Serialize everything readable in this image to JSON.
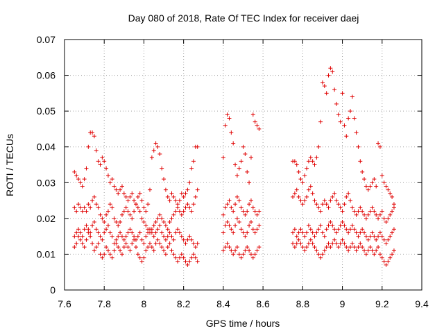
{
  "chart_data": {
    "type": "scatter",
    "title": "Day 080 of 2018, Rate Of TEC Index for receiver daej",
    "xlabel": "GPS time / hours",
    "ylabel": "ROTI / TECUs",
    "xlim": [
      7.6,
      9.4
    ],
    "ylim": [
      0,
      0.07
    ],
    "xticks": [
      7.6,
      7.8,
      8.0,
      8.2,
      8.4,
      8.6,
      8.8,
      9.0,
      9.2,
      9.4
    ],
    "xtick_labels": [
      "7.6",
      "7.8",
      "8",
      "8.2",
      "8.4",
      "8.6",
      "8.8",
      "9",
      "9.2",
      "9.4"
    ],
    "yticks": [
      0,
      0.01,
      0.02,
      0.03,
      0.04,
      0.05,
      0.06,
      0.07
    ],
    "ytick_labels": [
      "0",
      "0.01",
      "0.02",
      "0.03",
      "0.04",
      "0.05",
      "0.06",
      "0.07"
    ],
    "grid": true,
    "marker": "+",
    "color": "#e00000",
    "series": [
      {
        "name": "ROTI",
        "segments": [
          {
            "x_start": 7.65,
            "x_end": 8.27,
            "step": 0.01,
            "bands": [
              [
                0.012,
                0.013,
                0.015,
                0.014,
                0.013,
                0.012,
                0.014,
                0.016,
                0.015,
                0.013,
                0.011,
                0.012,
                0.013,
                0.01,
                0.009,
                0.01,
                0.012,
                0.011,
                0.01,
                0.009,
                0.011,
                0.013,
                0.012,
                0.011,
                0.01,
                0.012,
                0.013,
                0.012,
                0.011,
                0.013,
                0.014,
                0.012,
                0.01,
                0.009,
                0.008,
                0.009,
                0.011,
                0.012,
                0.013,
                0.012,
                0.011,
                0.013,
                0.014,
                0.013,
                0.012,
                0.011,
                0.01,
                0.012,
                0.013,
                0.011,
                0.01,
                0.009,
                0.008,
                0.009,
                0.01,
                0.009,
                0.008,
                0.007,
                0.008,
                0.009,
                0.01,
                0.009,
                0.008
              ],
              [
                0.015,
                0.016,
                0.017,
                0.016,
                0.015,
                0.017,
                0.018,
                0.017,
                0.016,
                0.018,
                0.019,
                0.017,
                0.016,
                0.015,
                0.014,
                0.016,
                0.017,
                0.018,
                0.016,
                0.015,
                0.013,
                0.014,
                0.015,
                0.016,
                0.015,
                0.014,
                0.015,
                0.016,
                0.017,
                0.016,
                0.015,
                0.014,
                0.015,
                0.016,
                0.014,
                0.013,
                0.015,
                0.016,
                0.017,
                0.016,
                0.015,
                0.016,
                0.017,
                0.018,
                0.016,
                0.015,
                0.014,
                0.015,
                0.016,
                0.015,
                0.014,
                0.016,
                0.017,
                0.016,
                0.015,
                0.014,
                0.013,
                0.014,
                0.015,
                0.014,
                0.013,
                0.012,
                0.013
              ],
              [
                0.023,
                0.022,
                0.024,
                0.023,
                0.022,
                0.023,
                0.022,
                0.024,
                0.023,
                0.025,
                0.026,
                0.024,
                0.023,
                0.021,
                0.02,
                0.019,
                0.021,
                0.022,
                0.024,
                0.023,
                0.02,
                0.019,
                0.018,
                0.019,
                0.021,
                0.022,
                0.023,
                0.022,
                0.021,
                0.02,
                0.022,
                0.024,
                0.023,
                0.022,
                0.02,
                0.019,
                0.018,
                0.017,
                0.016,
                0.017,
                0.018,
                0.019,
                0.02,
                0.021,
                0.02,
                0.019,
                0.018,
                0.017,
                0.019,
                0.02,
                0.021,
                0.022,
                0.023,
                0.022,
                0.021,
                0.022,
                0.023,
                0.024,
                0.023,
                0.022,
                0.024,
                0.026,
                0.028
              ],
              [
                0.033,
                0.032,
                0.031,
                0.03,
                0.029,
                0.031,
                0.034,
                0.04,
                0.044,
                0.044,
                0.043,
                0.039,
                0.036,
                0.035,
                0.037,
                0.036,
                0.034,
                0.032,
                0.03,
                0.031,
                0.029,
                0.028,
                0.027,
                0.028,
                0.029,
                0.027,
                0.026,
                0.025,
                0.026,
                0.027,
                0.025,
                0.024,
                0.026,
                0.027,
                0.025,
                0.023,
                0.022,
                0.024,
                0.028,
                0.037,
                0.039,
                0.041,
                0.04,
                0.038,
                0.034,
                0.031,
                0.028,
                0.026,
                0.025,
                0.027,
                0.026,
                0.025,
                0.024,
                0.025,
                0.027,
                0.026,
                0.027,
                0.028,
                0.03,
                0.034,
                0.036,
                0.04,
                0.04
              ]
            ]
          },
          {
            "x_start": 8.4,
            "x_end": 8.58,
            "step": 0.01,
            "bands": [
              [
                0.011,
                0.012,
                0.013,
                0.012,
                0.011,
                0.01,
                0.011,
                0.012,
                0.01,
                0.009,
                0.01,
                0.011,
                0.012,
                0.011,
                0.01,
                0.009,
                0.01,
                0.011,
                0.012
              ],
              [
                0.016,
                0.018,
                0.019,
                0.018,
                0.017,
                0.016,
                0.018,
                0.02,
                0.019,
                0.017,
                0.016,
                0.015,
                0.016,
                0.018,
                0.019,
                0.017,
                0.016,
                0.017,
                0.018
              ],
              [
                0.021,
                0.023,
                0.024,
                0.025,
                0.023,
                0.022,
                0.024,
                0.026,
                0.025,
                0.023,
                0.022,
                0.021,
                0.022,
                0.024,
                0.025,
                0.023,
                0.022,
                0.021,
                0.022
              ],
              [
                0.037,
                0.046,
                0.049,
                0.048,
                0.044,
                0.041,
                0.035,
                0.032,
                0.034,
                0.036,
                0.04,
                0.038,
                0.033,
                0.03,
                0.037,
                0.049,
                0.047,
                0.046,
                0.045
              ]
            ]
          },
          {
            "x_start": 8.75,
            "x_end": 9.26,
            "step": 0.01,
            "bands": [
              [
                0.013,
                0.012,
                0.013,
                0.014,
                0.013,
                0.012,
                0.011,
                0.012,
                0.013,
                0.014,
                0.013,
                0.012,
                0.011,
                0.01,
                0.009,
                0.01,
                0.011,
                0.012,
                0.013,
                0.012,
                0.013,
                0.014,
                0.013,
                0.012,
                0.013,
                0.014,
                0.013,
                0.012,
                0.011,
                0.012,
                0.013,
                0.012,
                0.011,
                0.012,
                0.013,
                0.012,
                0.011,
                0.01,
                0.011,
                0.012,
                0.011,
                0.01,
                0.011,
                0.012,
                0.01,
                0.009,
                0.008,
                0.007,
                0.008,
                0.009,
                0.01,
                0.011
              ],
              [
                0.016,
                0.017,
                0.015,
                0.016,
                0.017,
                0.016,
                0.015,
                0.016,
                0.018,
                0.017,
                0.016,
                0.015,
                0.016,
                0.017,
                0.018,
                0.016,
                0.015,
                0.017,
                0.018,
                0.019,
                0.018,
                0.017,
                0.016,
                0.017,
                0.018,
                0.019,
                0.018,
                0.017,
                0.016,
                0.017,
                0.018,
                0.017,
                0.016,
                0.015,
                0.016,
                0.017,
                0.016,
                0.015,
                0.014,
                0.015,
                0.016,
                0.015,
                0.014,
                0.015,
                0.016,
                0.015,
                0.014,
                0.013,
                0.014,
                0.015,
                0.016,
                0.017
              ],
              [
                0.026,
                0.027,
                0.028,
                0.026,
                0.025,
                0.024,
                0.025,
                0.026,
                0.028,
                0.029,
                0.027,
                0.025,
                0.024,
                0.023,
                0.022,
                0.024,
                0.025,
                0.024,
                0.023,
                0.025,
                0.026,
                0.027,
                0.025,
                0.024,
                0.023,
                0.022,
                0.024,
                0.026,
                0.027,
                0.025,
                0.023,
                0.022,
                0.021,
                0.022,
                0.023,
                0.022,
                0.021,
                0.02,
                0.021,
                0.022,
                0.023,
                0.022,
                0.021,
                0.02,
                0.021,
                0.022,
                0.02,
                0.019,
                0.02,
                0.021,
                0.022,
                0.023
              ],
              [
                0.036,
                0.036,
                0.035,
                0.033,
                0.031,
                0.03,
                0.032,
                0.034,
                0.036,
                0.037,
                0.036,
                0.035,
                0.037,
                0.04,
                0.047,
                0.058,
                0.057,
                0.055,
                0.06,
                0.062,
                0.061,
                0.056,
                0.052,
                0.049,
                0.047,
                0.055,
                0.046,
                0.043,
                0.048,
                0.05,
                0.054,
                0.048,
                0.044,
                0.04,
                0.036,
                0.033,
                0.031,
                0.029,
                0.028,
                0.029,
                0.03,
                0.031,
                0.029,
                0.041,
                0.04,
                0.032,
                0.03,
                0.029,
                0.028,
                0.027,
                0.026,
                0.024
              ]
            ]
          }
        ]
      }
    ]
  }
}
